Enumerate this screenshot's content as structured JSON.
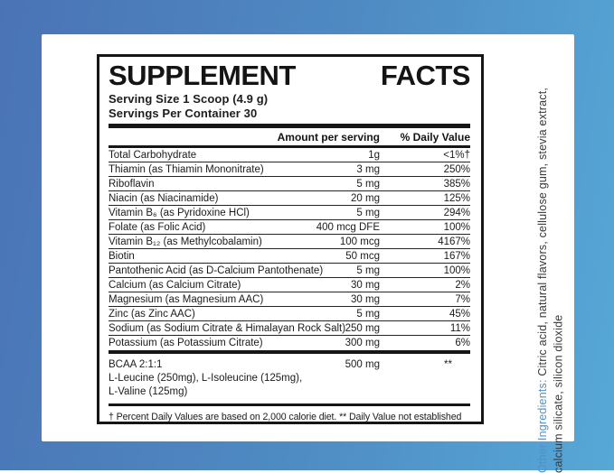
{
  "panel": {
    "title_left": "SUPPLEMENT",
    "title_right": "FACTS",
    "serving_size": "Serving Size 1 Scoop (4.9 g)",
    "servings_per_container": "Servings Per Container 30",
    "columns": {
      "amount": "Amount per serving",
      "daily_value": "% Daily Value"
    },
    "rows": [
      {
        "name": "Total Carbohydrate",
        "amount": "1g",
        "daily_value": "<1%†"
      },
      {
        "name": "Thiamin (as Thiamin Mononitrate)",
        "amount": "3 mg",
        "daily_value": "250%"
      },
      {
        "name": "Riboflavin",
        "amount": "5 mg",
        "daily_value": "385%"
      },
      {
        "name": "Niacin (as Niacinamide)",
        "amount": "20 mg",
        "daily_value": "125%"
      },
      {
        "name": "Vitamin B₆ (as Pyridoxine HCl)",
        "amount": "5 mg",
        "daily_value": "294%"
      },
      {
        "name": "Folate (as Folic Acid)",
        "amount": "400 mcg DFE",
        "daily_value": "100%"
      },
      {
        "name": "Vitamin B₁₂ (as Methylcobalamin)",
        "amount": "100 mcg",
        "daily_value": "4167%"
      },
      {
        "name": "Biotin",
        "amount": "50 mcg",
        "daily_value": "167%"
      },
      {
        "name": "Pantothenic Acid (as D-Calcium Pantothenate)",
        "amount": "5 mg",
        "daily_value": "100%"
      },
      {
        "name": "Calcium (as Calcium Citrate)",
        "amount": "30 mg",
        "daily_value": "2%"
      },
      {
        "name": "Magnesium (as Magnesium AAC)",
        "amount": "30 mg",
        "daily_value": "7%"
      },
      {
        "name": "Zinc (as Zinc AAC)",
        "amount": "5 mg",
        "daily_value": "45%"
      },
      {
        "name": "Sodium (as Sodium Citrate & Himalayan Rock Salt)",
        "amount": "250 mg",
        "daily_value": "11%"
      },
      {
        "name": "Potassium (as Potassium Citrate)",
        "amount": "300 mg",
        "daily_value": "6%"
      }
    ],
    "bcaa": {
      "name": "BCAA 2:1:1",
      "amount": "500 mg",
      "daily_value": "**",
      "components_line1": "L-Leucine (250mg), L-Isoleucine (125mg),",
      "components_line2": "L-Valine (125mg)"
    },
    "footnote": "† Percent Daily Values are based on 2,000 calorie diet. ** Daily Value not established"
  },
  "other_ingredients": {
    "label": "Other Ingredients:",
    "line1": " Citric acid, natural flavors, cellulose gum, stevia extract,",
    "line2": "calcium silicate, silicon dioxide"
  },
  "colors": {
    "background_left": "#4a73b5",
    "background_right": "#56a8d7",
    "panel_border": "#161616",
    "accent_blue": "#4e92c9"
  }
}
